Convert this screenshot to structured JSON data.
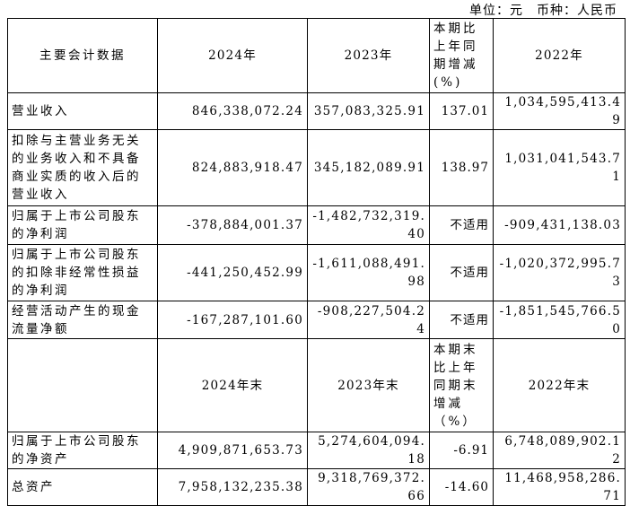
{
  "unit_note": "单位：元　币种：人民币",
  "table": {
    "rows": [
      [
        "主要会计数据",
        "2024年",
        "2023年",
        "本期比上年同期增减(%)",
        "2022年"
      ],
      [
        "营业收入",
        "846,338,072.24",
        "357,083,325.91",
        "137.01",
        "1,034,595,413.49"
      ],
      [
        "扣除与主营业务无关的业务收入和不具备商业实质的收入后的营业收入",
        "824,883,918.47",
        "345,182,089.91",
        "138.97",
        "1,031,041,543.71"
      ],
      [
        "归属于上市公司股东的净利润",
        "-378,884,001.37",
        "-1,482,732,319.40",
        "不适用",
        "-909,431,138.03"
      ],
      [
        "归属于上市公司股东的扣除非经常性损益的净利润",
        "-441,250,452.99",
        "-1,611,088,491.98",
        "不适用",
        "-1,020,372,995.73"
      ],
      [
        "经营活动产生的现金流量净额",
        "-167,287,101.60",
        "-908,227,504.24",
        "不适用",
        "-1,851,545,766.50"
      ],
      [
        "",
        "2024年末",
        "2023年末",
        "本期末比上年同期末增减（%）",
        "2022年末"
      ],
      [
        "归属于上市公司股东的净资产",
        "4,909,871,653.73",
        "5,274,604,094.18",
        "-6.91",
        "6,748,089,902.12"
      ],
      [
        "总资产",
        "7,958,132,235.38",
        "9,318,769,372.66",
        "-14.60",
        "11,468,958,286.71"
      ]
    ]
  }
}
